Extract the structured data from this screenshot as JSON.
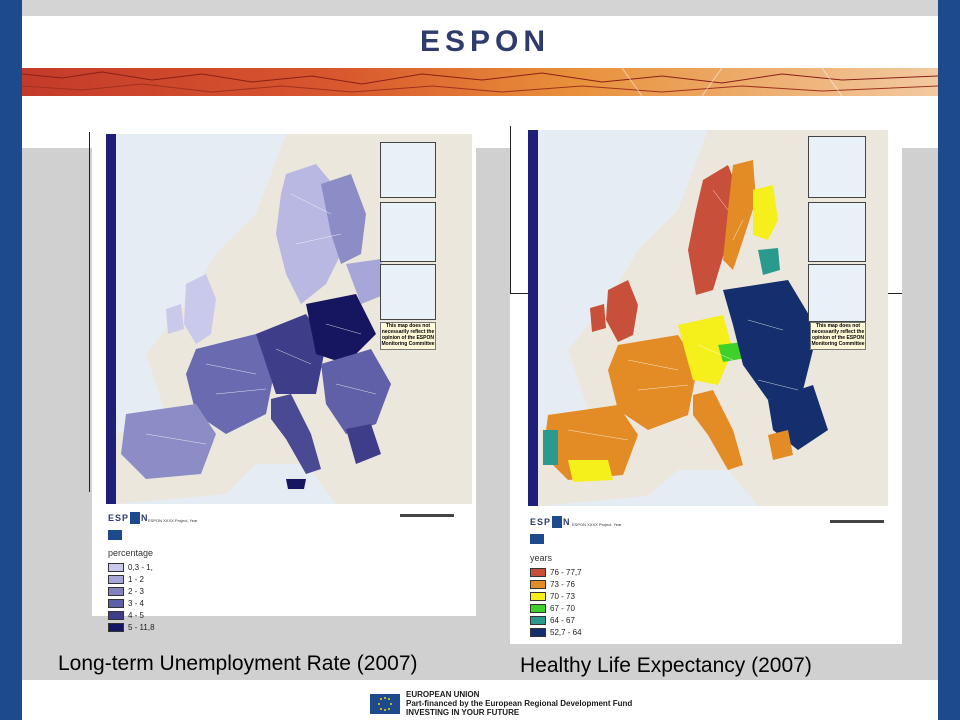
{
  "header": {
    "logo_text": "ESPON"
  },
  "left_map": {
    "project_line": "ESPON XXXX Project, Year",
    "legend_title": "percentage",
    "legend": [
      {
        "label": "0,3 - 1,",
        "color": "#c9c9ec"
      },
      {
        "label": "1 - 2",
        "color": "#a6a6d8"
      },
      {
        "label": "2 - 3",
        "color": "#8383c2"
      },
      {
        "label": "3 - 4",
        "color": "#6060a8"
      },
      {
        "label": "4 - 5",
        "color": "#3d3d8a"
      },
      {
        "label": "5 - 11,8",
        "color": "#161660"
      }
    ],
    "disclaimer": "This map does not necessarily reflect the opinion of the ESPON Monitoring Committee",
    "caption": "Long-term Unemployment Rate (2007)"
  },
  "right_map": {
    "project_line": "ESPON XXXX Project, Year",
    "legend_title": "years",
    "legend": [
      {
        "label": "76 - 77,7",
        "color": "#c8503a"
      },
      {
        "label": "73 - 76",
        "color": "#e38b24"
      },
      {
        "label": "70 - 73",
        "color": "#f5ef1c"
      },
      {
        "label": "67 - 70",
        "color": "#3ed12a"
      },
      {
        "label": "64 - 67",
        "color": "#2a9a8c"
      },
      {
        "label": "52,7 - 64",
        "color": "#152f6e"
      }
    ],
    "disclaimer": "This map does not necessarily reflect the opinion of the ESPON Monitoring Committee",
    "caption": "Healthy Life Expectancy (2007)"
  },
  "footer": {
    "eu_line1": "EUROPEAN UNION",
    "eu_line2": "Part-financed by the European Regional Development Fund",
    "eu_line3": "INVESTING IN YOUR FUTURE"
  }
}
